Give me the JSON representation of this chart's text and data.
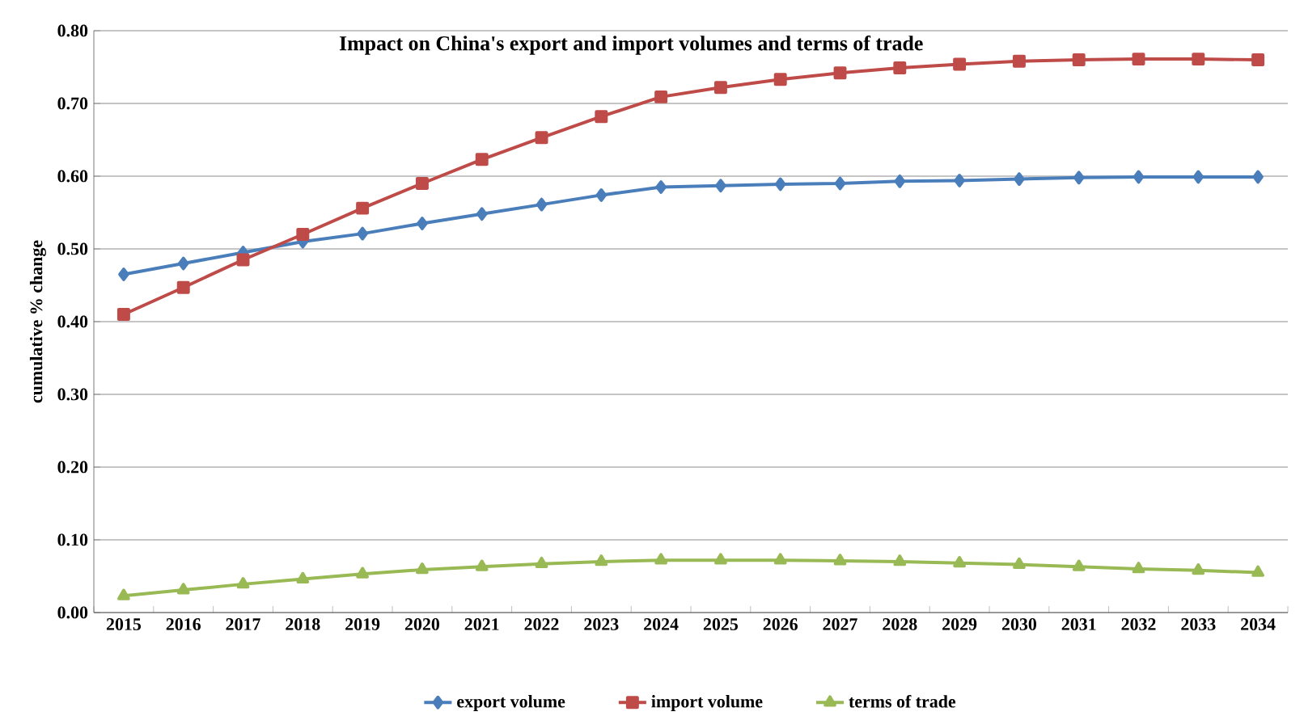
{
  "chart_data": {
    "type": "line",
    "title": "Impact on China's export and import volumes and terms of trade",
    "ylabel": "cumulative % change",
    "categories": [
      "2015",
      "2016",
      "2017",
      "2018",
      "2019",
      "2020",
      "2021",
      "2022",
      "2023",
      "2024",
      "2025",
      "2026",
      "2027",
      "2028",
      "2029",
      "2030",
      "2031",
      "2032",
      "2033",
      "2034"
    ],
    "series": [
      {
        "name": "export volume",
        "color": "#4a7ebb",
        "marker": "diamond",
        "values": [
          0.465,
          0.48,
          0.495,
          0.51,
          0.521,
          0.535,
          0.548,
          0.561,
          0.574,
          0.585,
          0.587,
          0.589,
          0.59,
          0.593,
          0.594,
          0.596,
          0.598,
          0.599,
          0.599,
          0.599
        ]
      },
      {
        "name": "import volume",
        "color": "#be4b48",
        "marker": "square",
        "values": [
          0.41,
          0.447,
          0.485,
          0.52,
          0.556,
          0.59,
          0.623,
          0.653,
          0.682,
          0.709,
          0.722,
          0.733,
          0.742,
          0.749,
          0.754,
          0.758,
          0.76,
          0.761,
          0.761,
          0.76
        ]
      },
      {
        "name": "terms of trade",
        "color": "#98b954",
        "marker": "triangle",
        "values": [
          0.023,
          0.031,
          0.039,
          0.046,
          0.053,
          0.059,
          0.063,
          0.067,
          0.07,
          0.072,
          0.072,
          0.072,
          0.071,
          0.07,
          0.068,
          0.066,
          0.063,
          0.06,
          0.058,
          0.055
        ]
      }
    ],
    "ylim": [
      0,
      0.8
    ],
    "yticks": [
      {
        "value": 0,
        "label": "0.00"
      },
      {
        "value": 0.1,
        "label": "0.10"
      },
      {
        "value": 0.2,
        "label": "0.20"
      },
      {
        "value": 0.3,
        "label": "0.30"
      },
      {
        "value": 0.4,
        "label": "0.40"
      },
      {
        "value": 0.5,
        "label": "0.50"
      },
      {
        "value": 0.6,
        "label": "0.60"
      },
      {
        "value": 0.7,
        "label": "0.70"
      },
      {
        "value": 0.8,
        "label": "0.80"
      }
    ],
    "grid": "y",
    "legend": "bottom",
    "line_style": "solid"
  }
}
